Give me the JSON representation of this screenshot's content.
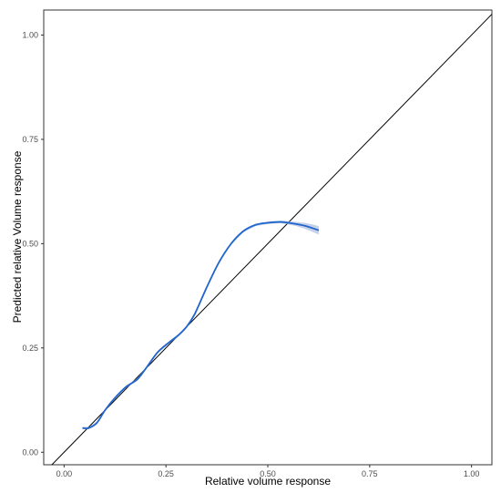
{
  "chart_data": {
    "type": "line",
    "title": "",
    "xlabel": "Relative volume response",
    "ylabel": "Predicted relative Volume response",
    "xlim": [
      -0.05,
      1.05
    ],
    "ylim": [
      -0.03,
      1.06
    ],
    "x_ticks": [
      "0.00",
      "0.25",
      "0.50",
      "0.75",
      "1.00"
    ],
    "y_ticks": [
      "0.00",
      "0.25",
      "0.50",
      "0.75",
      "1.00"
    ],
    "grid": false,
    "legend": "none",
    "reference_line": {
      "type": "identity",
      "color": "#000000"
    },
    "series": [
      {
        "color": "#2166cc",
        "band_color": "#9fb3d9",
        "x": [
          0.045,
          0.06,
          0.08,
          0.1,
          0.12,
          0.15,
          0.18,
          0.2,
          0.23,
          0.26,
          0.28,
          0.3,
          0.32,
          0.35,
          0.38,
          0.41,
          0.44,
          0.47,
          0.5,
          0.53,
          0.55,
          0.57,
          0.59,
          0.61,
          0.625
        ],
        "y": [
          0.058,
          0.058,
          0.07,
          0.1,
          0.125,
          0.155,
          0.175,
          0.2,
          0.24,
          0.265,
          0.28,
          0.3,
          0.33,
          0.395,
          0.455,
          0.5,
          0.53,
          0.545,
          0.55,
          0.552,
          0.55,
          0.547,
          0.543,
          0.537,
          0.532
        ],
        "band_halfwidth": [
          0.003,
          0.003,
          0.003,
          0.003,
          0.003,
          0.003,
          0.003,
          0.003,
          0.003,
          0.003,
          0.003,
          0.003,
          0.003,
          0.003,
          0.003,
          0.003,
          0.003,
          0.003,
          0.003,
          0.003,
          0.004,
          0.005,
          0.007,
          0.009,
          0.01
        ]
      }
    ]
  }
}
